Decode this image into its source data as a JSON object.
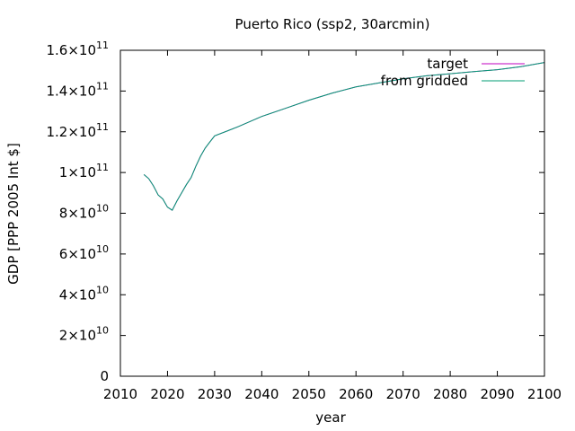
{
  "chart_data": {
    "type": "line",
    "title": "Puerto Rico (ssp2, 30arcmin)",
    "xlabel": "year",
    "ylabel": "GDP [PPP 2005 Int $]",
    "xlim": [
      2010,
      2100
    ],
    "ylim": [
      0,
      160000000000
    ],
    "x_ticks": [
      2010,
      2020,
      2030,
      2040,
      2050,
      2060,
      2070,
      2080,
      2090,
      2100
    ],
    "y_ticks": [
      {
        "value": 0,
        "mantissa": "0",
        "exponent": ""
      },
      {
        "value": 20000000000,
        "mantissa": "2×10",
        "exponent": "10"
      },
      {
        "value": 40000000000,
        "mantissa": "4×10",
        "exponent": "10"
      },
      {
        "value": 60000000000,
        "mantissa": "6×10",
        "exponent": "10"
      },
      {
        "value": 80000000000,
        "mantissa": "8×10",
        "exponent": "10"
      },
      {
        "value": 100000000000,
        "mantissa": "1×10",
        "exponent": "11"
      },
      {
        "value": 120000000000,
        "mantissa": "1.2×10",
        "exponent": "11"
      },
      {
        "value": 140000000000,
        "mantissa": "1.4×10",
        "exponent": "11"
      },
      {
        "value": 160000000000,
        "mantissa": "1.6×10",
        "exponent": "11"
      }
    ],
    "legend_position": "top-right",
    "grid": false,
    "series": [
      {
        "name": "target",
        "color": "#c000c0",
        "x": [
          2015,
          2016,
          2017,
          2018,
          2019,
          2020,
          2021,
          2022,
          2023,
          2024,
          2025,
          2026,
          2027,
          2028,
          2029,
          2030,
          2035,
          2040,
          2045,
          2050,
          2055,
          2060,
          2065,
          2070,
          2075,
          2080,
          2085,
          2090,
          2095,
          2100
        ],
        "values": [
          99000000000,
          97000000000,
          93500000000,
          89000000000,
          87000000000,
          83000000000,
          81500000000,
          86000000000,
          90000000000,
          94000000000,
          97500000000,
          103000000000,
          108000000000,
          112000000000,
          115000000000,
          118000000000,
          122500000000,
          127500000000,
          131500000000,
          135500000000,
          139000000000,
          142000000000,
          144000000000,
          146000000000,
          147500000000,
          148500000000,
          149500000000,
          150500000000,
          152000000000,
          154000000000
        ]
      },
      {
        "name": "from gridded",
        "color": "#009e73",
        "x": [
          2015,
          2016,
          2017,
          2018,
          2019,
          2020,
          2021,
          2022,
          2023,
          2024,
          2025,
          2026,
          2027,
          2028,
          2029,
          2030,
          2035,
          2040,
          2045,
          2050,
          2055,
          2060,
          2065,
          2070,
          2075,
          2080,
          2085,
          2090,
          2095,
          2100
        ],
        "values": [
          99000000000,
          97000000000,
          93500000000,
          89000000000,
          87000000000,
          83000000000,
          81500000000,
          86000000000,
          90000000000,
          94000000000,
          97500000000,
          103000000000,
          108000000000,
          112000000000,
          115000000000,
          118000000000,
          122500000000,
          127500000000,
          131500000000,
          135500000000,
          139000000000,
          142000000000,
          144000000000,
          146000000000,
          147500000000,
          148500000000,
          149500000000,
          150500000000,
          152000000000,
          154000000000
        ]
      }
    ]
  }
}
